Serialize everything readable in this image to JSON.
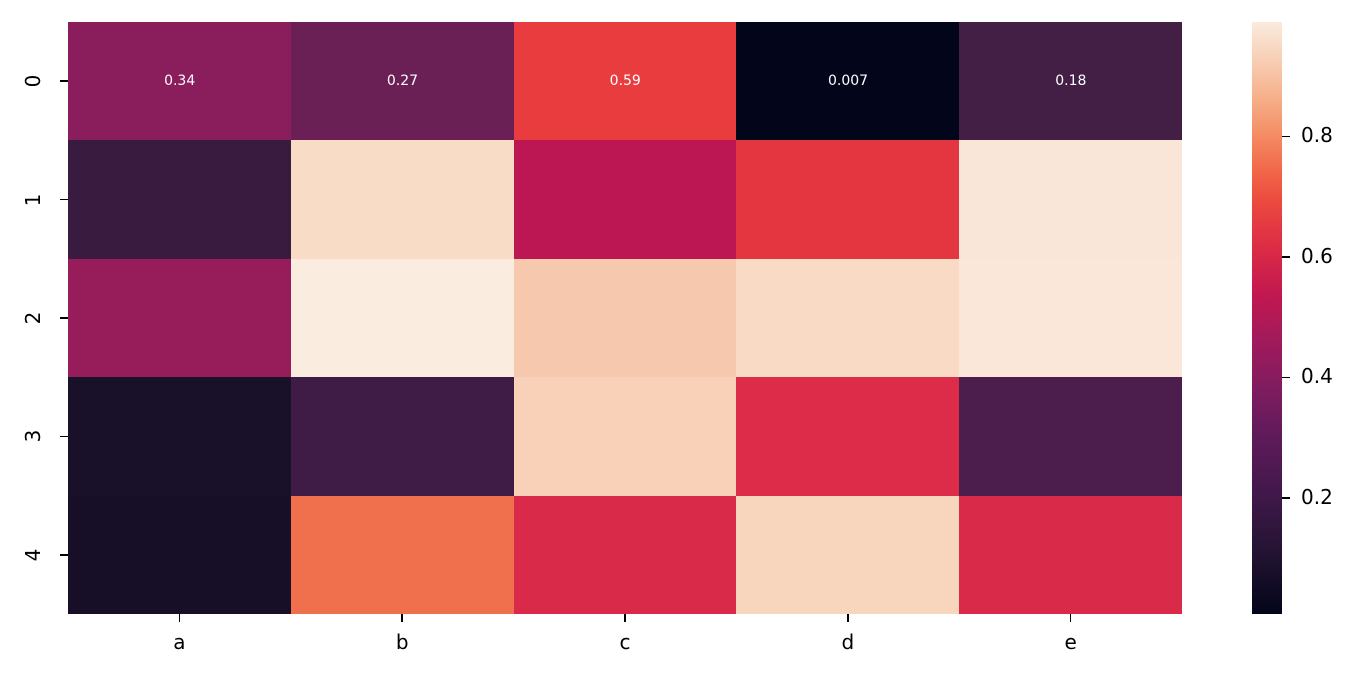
{
  "chart_data": {
    "type": "heatmap",
    "title": "",
    "xlabel": "",
    "ylabel": "",
    "x_categories": [
      "a",
      "b",
      "c",
      "d",
      "e"
    ],
    "y_categories": [
      "0",
      "1",
      "2",
      "3",
      "4"
    ],
    "values": [
      [
        0.34,
        0.27,
        0.59,
        0.007,
        0.18
      ],
      [
        0.14,
        0.95,
        0.45,
        0.59,
        0.98
      ],
      [
        0.36,
        0.99,
        0.9,
        0.95,
        0.98
      ],
      [
        0.05,
        0.16,
        0.92,
        0.54,
        0.19
      ],
      [
        0.04,
        0.72,
        0.53,
        0.93,
        0.53
      ]
    ],
    "annotations": [
      {
        "row": 0,
        "col": 0,
        "text": "0.34"
      },
      {
        "row": 0,
        "col": 1,
        "text": "0.27"
      },
      {
        "row": 0,
        "col": 2,
        "text": "0.59"
      },
      {
        "row": 0,
        "col": 3,
        "text": "0.007"
      },
      {
        "row": 0,
        "col": 4,
        "text": "0.18"
      }
    ],
    "colormap": "rocket",
    "vmin": 0.007,
    "vmax": 0.99,
    "colorbar": {
      "ticks": [
        0.2,
        0.4,
        0.6,
        0.8
      ],
      "tick_labels": [
        "0.2",
        "0.4",
        "0.6",
        "0.8"
      ],
      "position": "right"
    },
    "cell_colors": [
      [
        "#8a1d5b",
        "#6a1f55",
        "#e83c3f",
        "#03051a",
        "#431e45"
      ],
      [
        "#3a1b40",
        "#f9dcc6",
        "#bc1753",
        "#e33641",
        "#fae6d8"
      ],
      [
        "#961d5a",
        "#fbece0",
        "#f6c8ae",
        "#f9dbc5",
        "#fbe7d9"
      ],
      [
        "#19112a",
        "#3f1c45",
        "#f8d1b8",
        "#dd2c4a",
        "#4b1e4d"
      ],
      [
        "#160f27",
        "#f06f4d",
        "#da2a4a",
        "#f7d6bd",
        "#d92a4a"
      ]
    ],
    "grid": false
  }
}
